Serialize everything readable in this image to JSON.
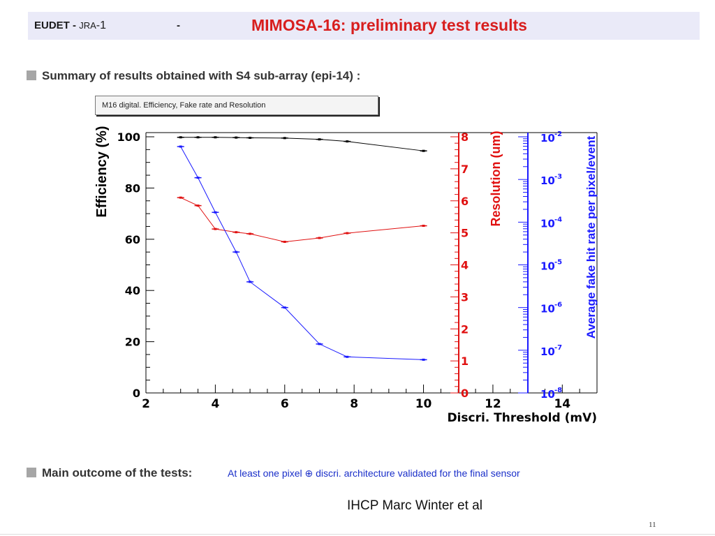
{
  "header": {
    "org": "EUDET",
    "sep": " - ",
    "jra": "JRA",
    "jra_num": "-1",
    "dash": "-",
    "title": "MIMOSA-16: preliminary test results"
  },
  "summary_heading": "Summary of results obtained with S4 sub-array (epi-14) :",
  "plot_title": "M16 digital. Efficiency, Fake rate and Resolution",
  "outcome_label": "Main outcome of the tests:",
  "outcome_text": "At least one pixel ⊕ discri. architecture validated for the final sensor",
  "footer": {
    "author": "IHCP  Marc Winter et al",
    "page": "11"
  },
  "chart_data": {
    "type": "line",
    "xlabel": "Discri. Threshold (mV)",
    "xlim": [
      2,
      15
    ],
    "x_ticks": [
      "2",
      "4",
      "6",
      "8",
      "10",
      "12",
      "14"
    ],
    "y_axes": [
      {
        "label": "Efficiency (%)",
        "range": [
          0,
          100
        ],
        "ticks": [
          "0",
          "20",
          "40",
          "60",
          "80",
          "100"
        ],
        "color": "#000000"
      },
      {
        "label": "Resolution (um)",
        "range": [
          0,
          8
        ],
        "ticks": [
          "0",
          "1",
          "2",
          "3",
          "4",
          "5",
          "6",
          "7",
          "8"
        ],
        "color": "#e01010"
      },
      {
        "label": "Average fake hit rate per pixel/event",
        "scale": "log",
        "range": [
          1e-08,
          0.01
        ],
        "ticks": [
          {
            "base": "10",
            "exp": "-8"
          },
          {
            "base": "10",
            "exp": "-7"
          },
          {
            "base": "10",
            "exp": "-6"
          },
          {
            "base": "10",
            "exp": "-5"
          },
          {
            "base": "10",
            "exp": "-4"
          },
          {
            "base": "10",
            "exp": "-3"
          },
          {
            "base": "10",
            "exp": "-2"
          }
        ],
        "color": "#1a1aff"
      }
    ],
    "series": [
      {
        "axis": 0,
        "color": "#000000",
        "x": [
          3,
          3.5,
          4,
          4.6,
          5,
          6,
          7,
          7.8,
          10
        ],
        "y": [
          99.8,
          99.8,
          99.8,
          99.7,
          99.6,
          99.5,
          99.0,
          98.2,
          94.5
        ]
      },
      {
        "axis": 1,
        "color": "#e01010",
        "x": [
          3,
          3.5,
          4,
          4.6,
          5,
          6,
          7,
          7.8,
          10
        ],
        "y": [
          6.1,
          5.85,
          5.12,
          5.02,
          4.97,
          4.72,
          4.84,
          4.99,
          5.22
        ]
      },
      {
        "axis": 2,
        "color": "#1a1aff",
        "x": [
          3,
          3.5,
          4,
          4.6,
          5,
          6,
          7,
          7.8,
          10
        ],
        "y": [
          0.0059,
          0.0011,
          0.00017,
          2e-05,
          4e-06,
          1e-06,
          1.4e-07,
          7e-08,
          6e-08
        ]
      }
    ]
  }
}
